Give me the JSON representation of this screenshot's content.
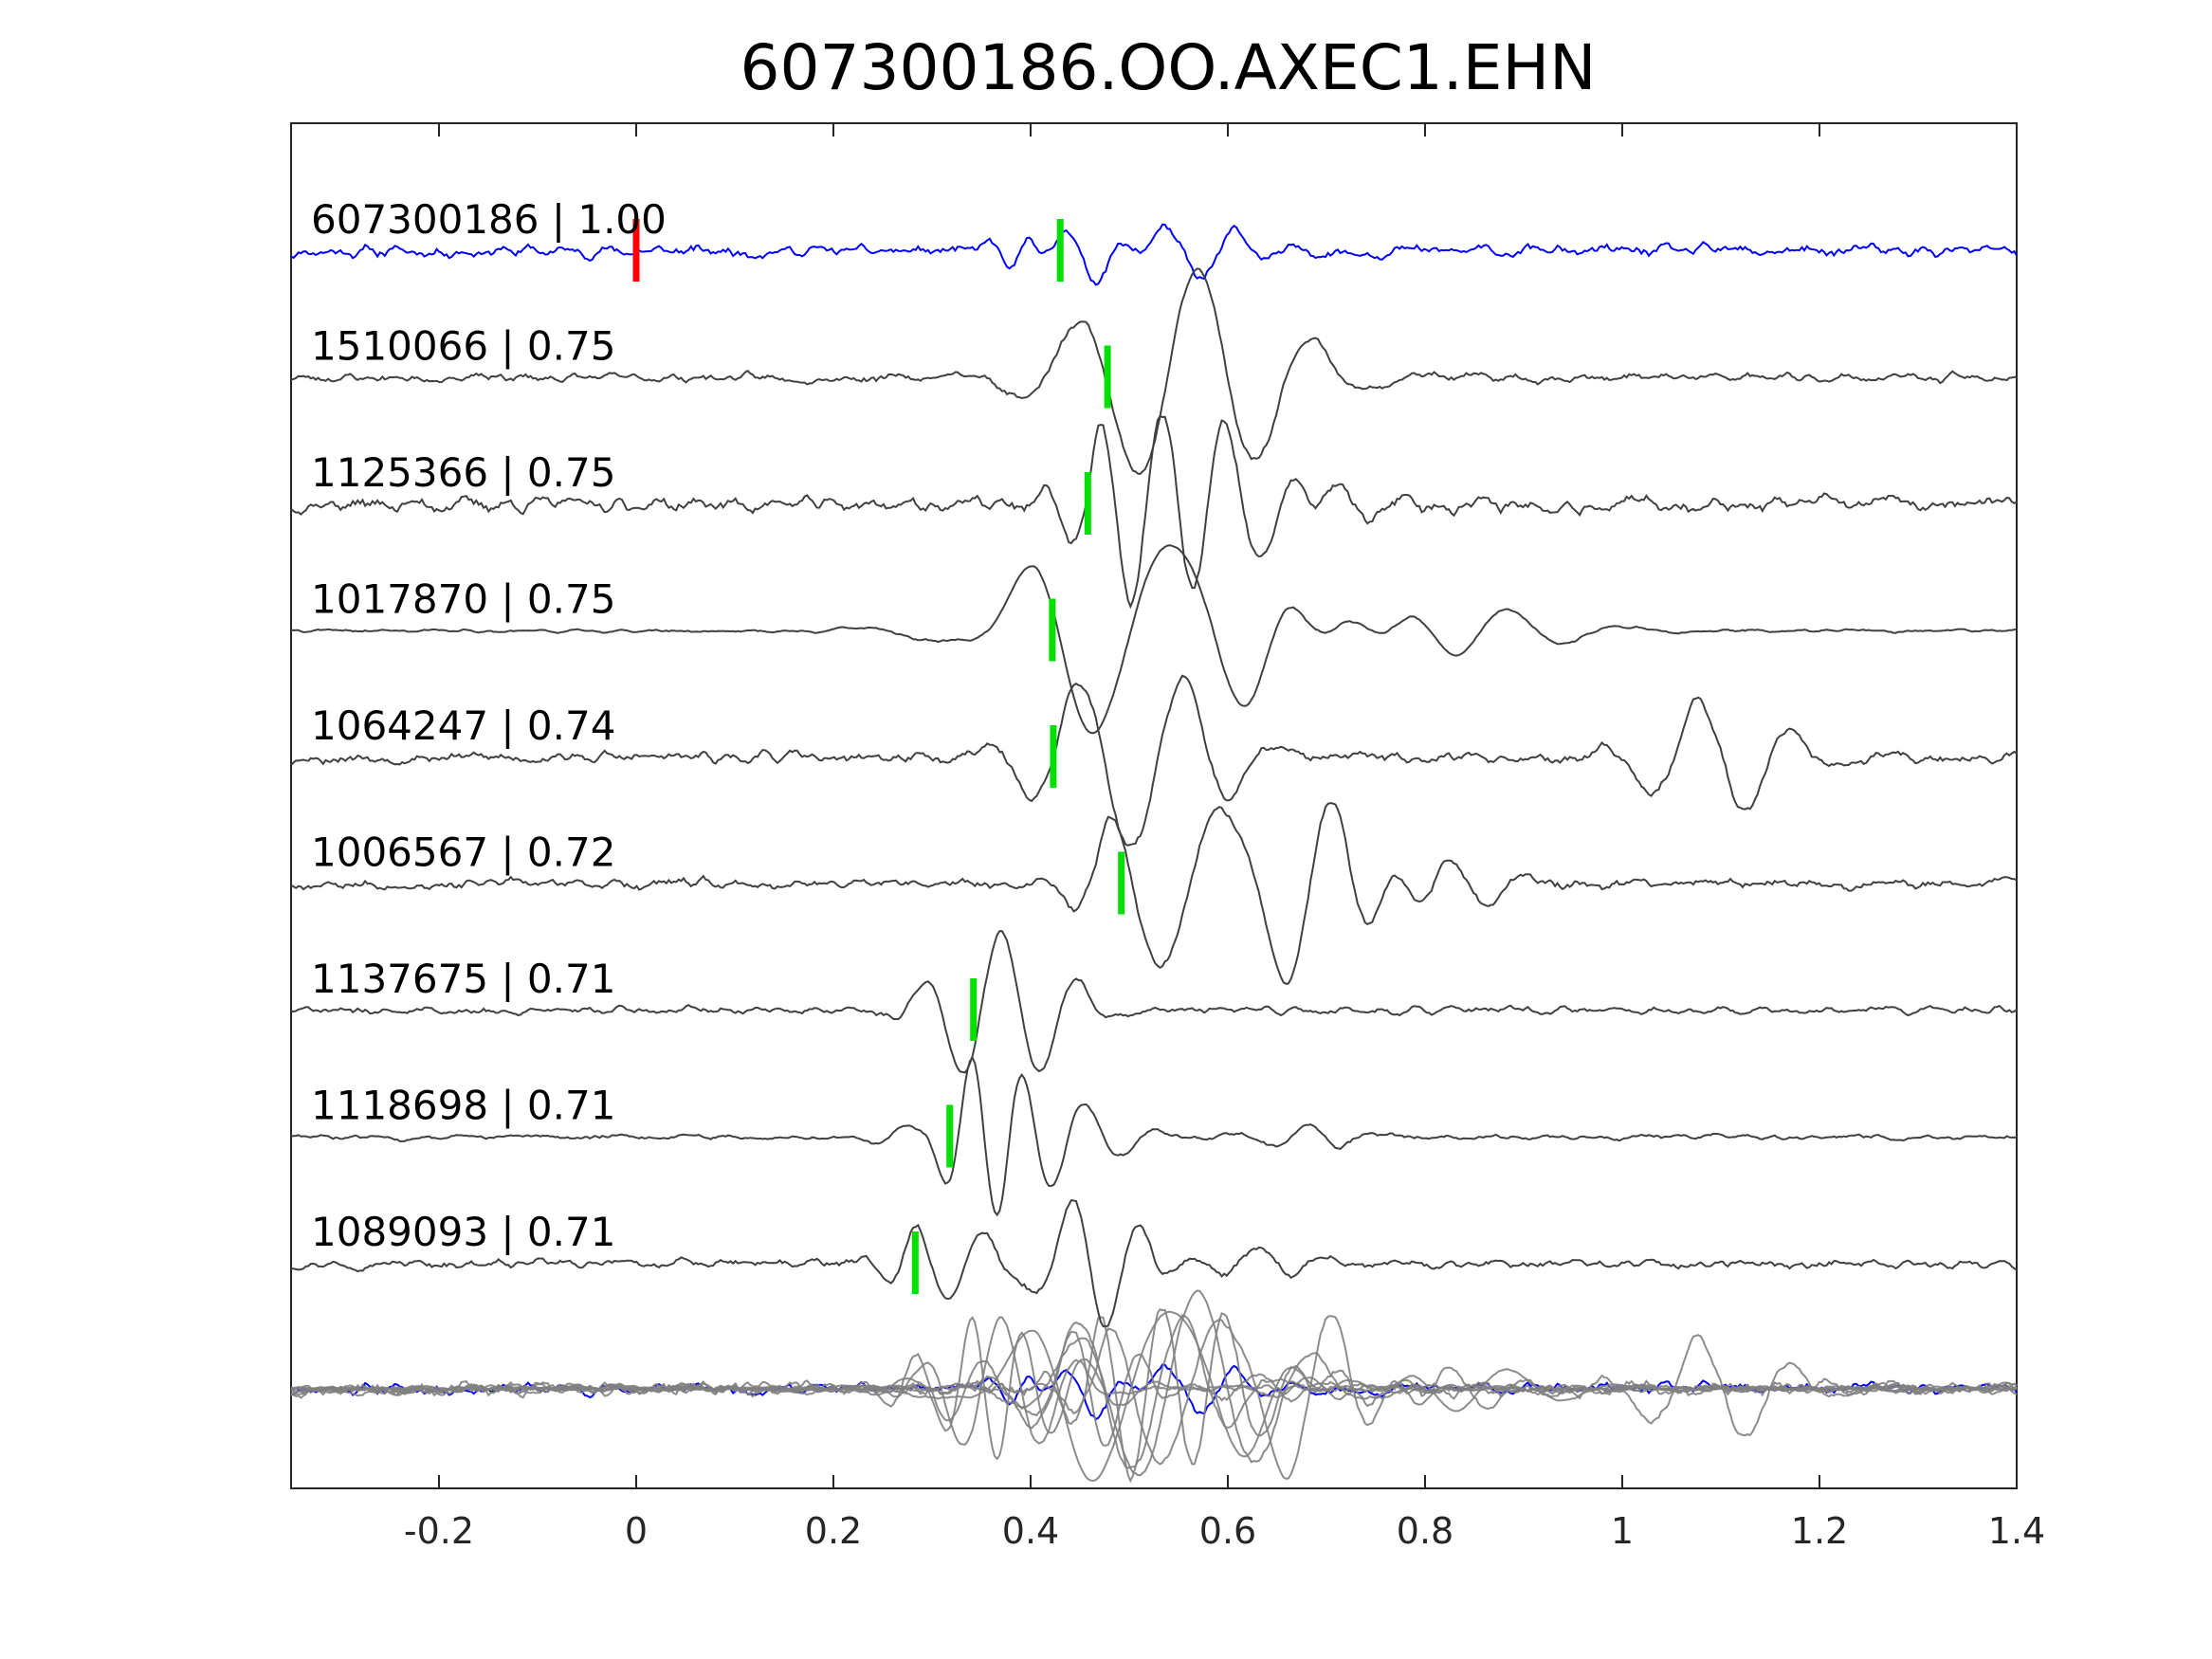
{
  "chart_data": {
    "type": "line",
    "title": "607300186.OO.AXEC1.EHN",
    "xlabel": "",
    "ylabel": "",
    "xlim": [
      -0.35,
      1.4
    ],
    "x_ticks": [
      -0.2,
      0,
      0.2,
      0.4,
      0.6,
      0.8,
      1,
      1.2,
      1.4
    ],
    "x_tick_labels": [
      "-0.2",
      "0",
      "0.2",
      "0.4",
      "0.6",
      "0.8",
      "1",
      "1.2",
      "1.4"
    ],
    "grid": false,
    "legend": "none",
    "colors": {
      "template": "#0000ff",
      "matches": "#404040",
      "overlay": "#808080",
      "pick_template": "#ff0000",
      "pick_match": "#00e000",
      "axis": "#262626"
    },
    "traces": [
      {
        "id": "607300186",
        "cc": "1.00",
        "label": "607300186 | 1.00",
        "kind": "template",
        "pick_red": 0.0,
        "pick_green": 0.43,
        "noise": 0.5,
        "seed": 11,
        "wavelets": [
          {
            "t": 0.4,
            "a": 1.0,
            "f": 22
          },
          {
            "t": 0.465,
            "a": -1.5,
            "f": 14
          },
          {
            "t": 0.53,
            "a": 1.3,
            "f": 15
          },
          {
            "t": 0.58,
            "a": -1.0,
            "f": 15
          }
        ]
      },
      {
        "id": "1510066",
        "cc": "0.75",
        "label": "1510066 | 0.75",
        "kind": "match",
        "pick_green": 0.478,
        "noise": 0.35,
        "seed": 23,
        "wavelets": [
          {
            "t": 0.51,
            "a": -2.2,
            "f": 8
          },
          {
            "t": 0.565,
            "a": 2.0,
            "f": 8
          },
          {
            "t": 0.63,
            "a": -1.2,
            "f": 9
          }
        ]
      },
      {
        "id": "1125366",
        "cc": "0.75",
        "label": "1125366 | 0.75",
        "kind": "match",
        "pick_green": 0.458,
        "noise": 0.6,
        "seed": 37,
        "wavelets": [
          {
            "t": 0.47,
            "a": 1.2,
            "f": 18
          },
          {
            "t": 0.5,
            "a": -2.2,
            "f": 16
          },
          {
            "t": 0.54,
            "a": 2.3,
            "f": 16
          },
          {
            "t": 0.59,
            "a": 1.8,
            "f": 14
          },
          {
            "t": 0.64,
            "a": -1.8,
            "f": 14
          },
          {
            "t": 0.71,
            "a": 1.2,
            "f": 14
          }
        ]
      },
      {
        "id": "1017870",
        "cc": "0.75",
        "label": "1017870 | 0.75",
        "kind": "match",
        "pick_green": 0.422,
        "noise": 0.12,
        "seed": 41,
        "wavelets": [
          {
            "t": 0.41,
            "a": 1.0,
            "f": 10
          },
          {
            "t": 0.48,
            "a": -2.2,
            "f": 6
          },
          {
            "t": 0.53,
            "a": 2.6,
            "f": 6
          },
          {
            "t": 0.66,
            "a": 1.2,
            "f": 11
          },
          {
            "t": 0.72,
            "a": 0.9,
            "f": 11
          },
          {
            "t": 0.78,
            "a": 0.9,
            "f": 9
          },
          {
            "t": 0.88,
            "a": 0.6,
            "f": 8
          }
        ]
      },
      {
        "id": "1064247",
        "cc": "0.74",
        "label": "1064247 | 0.74",
        "kind": "match",
        "pick_green": 0.423,
        "noise": 0.45,
        "seed": 53,
        "wavelets": [
          {
            "t": 0.45,
            "a": 1.4,
            "f": 11
          },
          {
            "t": 0.5,
            "a": -2.5,
            "f": 9
          },
          {
            "t": 0.56,
            "a": 1.2,
            "f": 12
          },
          {
            "t": 1.08,
            "a": 1.5,
            "f": 10
          },
          {
            "t": 1.12,
            "a": -1.0,
            "f": 10
          }
        ]
      },
      {
        "id": "1006567",
        "cc": "0.72",
        "label": "1006567 | 0.72",
        "kind": "match",
        "pick_green": 0.492,
        "noise": 0.4,
        "seed": 67,
        "wavelets": [
          {
            "t": 0.48,
            "a": 1.1,
            "f": 14
          },
          {
            "t": 0.54,
            "a": -1.7,
            "f": 10
          },
          {
            "t": 0.59,
            "a": 2.3,
            "f": 8
          },
          {
            "t": 0.66,
            "a": -1.4,
            "f": 12
          },
          {
            "t": 0.71,
            "a": 1.6,
            "f": 12
          },
          {
            "t": 0.77,
            "a": 1.3,
            "f": 13
          },
          {
            "t": 0.82,
            "a": 1.5,
            "f": 12
          }
        ]
      },
      {
        "id": "1137675",
        "cc": "0.71",
        "label": "1137675 | 0.71",
        "kind": "match",
        "pick_green": 0.342,
        "noise": 0.3,
        "seed": 71,
        "wavelets": [
          {
            "t": 0.33,
            "a": -0.6,
            "f": 15
          },
          {
            "t": 0.37,
            "a": 2.4,
            "f": 12
          },
          {
            "t": 0.41,
            "a": -0.8,
            "f": 14
          }
        ]
      },
      {
        "id": "1118698",
        "cc": "0.71",
        "label": "1118698 | 0.71",
        "kind": "match",
        "pick_green": 0.318,
        "noise": 0.2,
        "seed": 83,
        "wavelets": [
          {
            "t": 0.3,
            "a": -0.8,
            "f": 16
          },
          {
            "t": 0.34,
            "a": 2.2,
            "f": 20
          },
          {
            "t": 0.37,
            "a": -1.3,
            "f": 20
          },
          {
            "t": 0.42,
            "a": -1.0,
            "f": 16
          },
          {
            "t": 0.46,
            "a": 0.9,
            "f": 14
          },
          {
            "t": 0.68,
            "a": 0.5,
            "f": 14
          }
        ]
      },
      {
        "id": "1089093",
        "cc": "0.71",
        "label": "1089093 | 0.71",
        "kind": "match",
        "pick_green": 0.283,
        "noise": 0.35,
        "seed": 97,
        "wavelets": [
          {
            "t": 0.28,
            "a": 0.8,
            "f": 18
          },
          {
            "t": 0.32,
            "a": -1.0,
            "f": 16
          },
          {
            "t": 0.38,
            "a": -0.8,
            "f": 16
          },
          {
            "t": 0.44,
            "a": 2.3,
            "f": 14
          },
          {
            "t": 0.48,
            "a": -1.0,
            "f": 16
          },
          {
            "t": 0.63,
            "a": 0.6,
            "f": 14
          }
        ]
      }
    ]
  }
}
